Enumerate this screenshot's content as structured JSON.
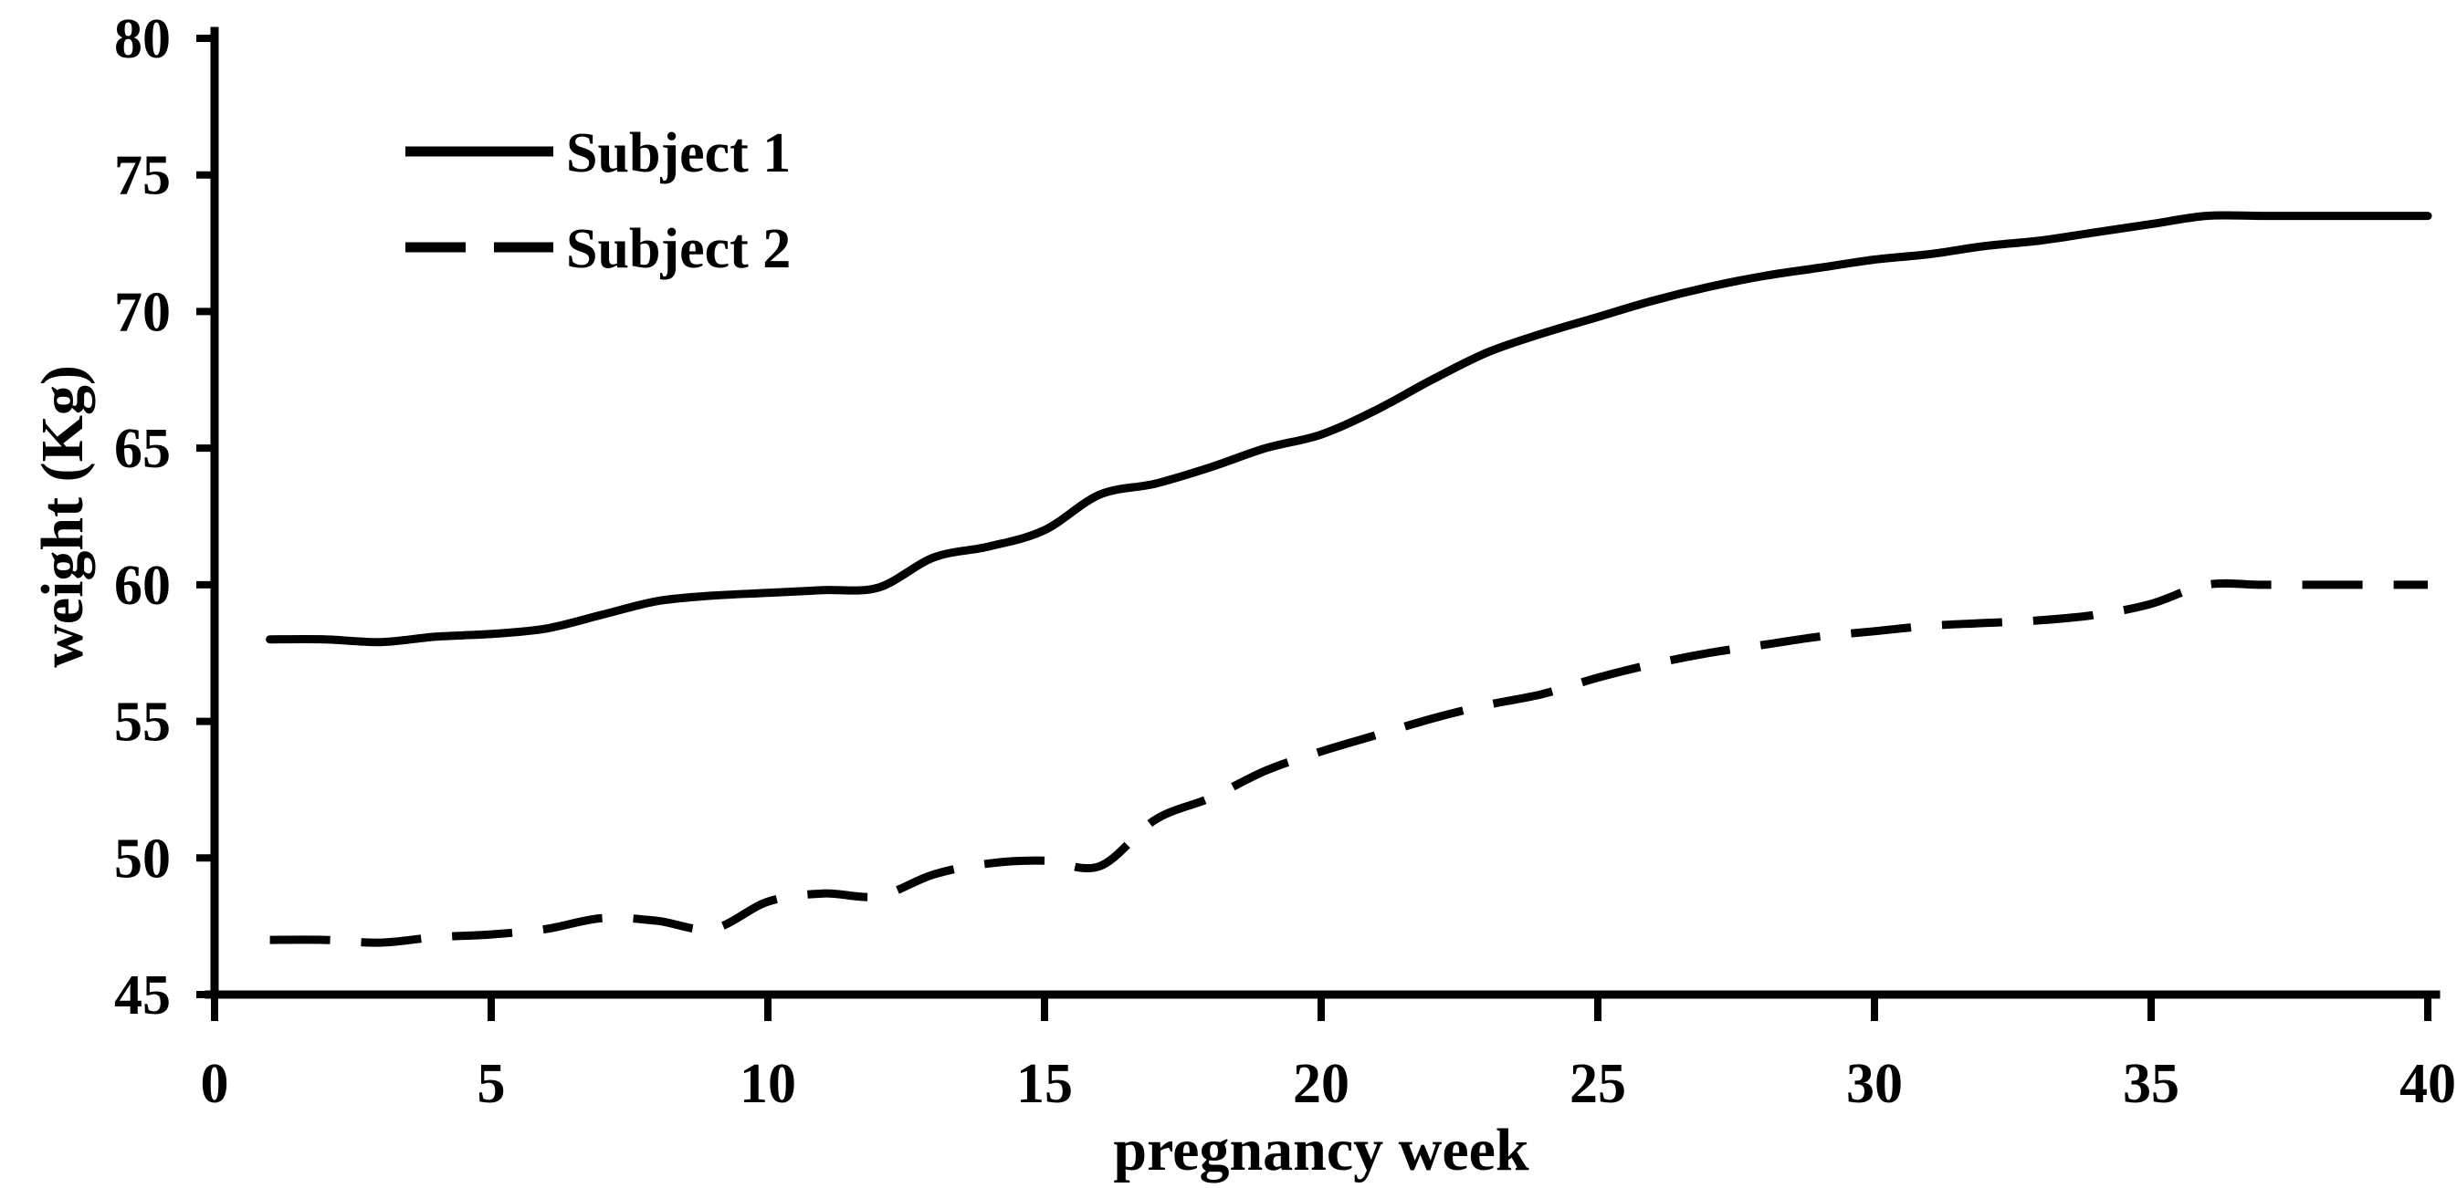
{
  "figure": {
    "background_color": "#ffffff",
    "ink_color": "#000000"
  },
  "chart_data": {
    "type": "line",
    "title": "",
    "xlabel": "pregnancy week",
    "ylabel": "weight (Kg)",
    "xlim": [
      0,
      40
    ],
    "ylim": [
      45,
      80
    ],
    "x_ticks": [
      0,
      5,
      10,
      15,
      20,
      25,
      30,
      35,
      40
    ],
    "y_ticks": [
      45,
      50,
      55,
      60,
      65,
      70,
      75,
      80
    ],
    "grid": false,
    "legend_position": "top-left-inside",
    "x": [
      1,
      2,
      3,
      4,
      5,
      6,
      7,
      8,
      9,
      10,
      11,
      12,
      13,
      14,
      15,
      16,
      17,
      18,
      19,
      20,
      21,
      22,
      23,
      24,
      25,
      26,
      27,
      28,
      29,
      30,
      31,
      32,
      33,
      34,
      35,
      36,
      37,
      38,
      39,
      40
    ],
    "series": [
      {
        "name": "Subject 1",
        "line_style": "solid",
        "color": "#000000",
        "values": [
          58.0,
          58.0,
          57.9,
          58.1,
          58.2,
          58.4,
          58.9,
          59.4,
          59.6,
          59.7,
          59.8,
          59.9,
          61.0,
          61.4,
          62.0,
          63.3,
          63.7,
          64.3,
          65.0,
          65.5,
          66.4,
          67.5,
          68.5,
          69.2,
          69.8,
          70.4,
          70.9,
          71.3,
          71.6,
          71.9,
          72.1,
          72.4,
          72.6,
          72.9,
          73.2,
          73.5,
          73.5,
          73.5,
          73.5,
          73.5
        ]
      },
      {
        "name": "Subject 2",
        "line_style": "dashed",
        "color": "#000000",
        "values": [
          47.0,
          47.0,
          46.9,
          47.1,
          47.2,
          47.4,
          47.8,
          47.7,
          47.4,
          48.4,
          48.7,
          48.6,
          49.4,
          49.8,
          49.9,
          49.7,
          51.4,
          52.2,
          53.2,
          53.9,
          54.5,
          55.1,
          55.6,
          56.0,
          56.6,
          57.1,
          57.5,
          57.8,
          58.1,
          58.3,
          58.5,
          58.6,
          58.7,
          58.9,
          59.3,
          60.0,
          60.0,
          60.0,
          60.0,
          60.0
        ]
      }
    ]
  }
}
